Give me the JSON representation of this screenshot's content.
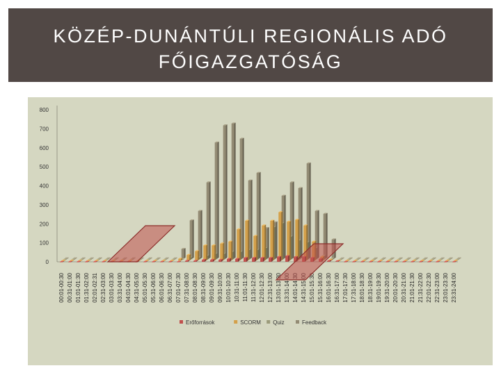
{
  "slide": {
    "title": "KÖZÉP-DUNÁNTÚLI REGIONÁLIS ADÓ\nFŐIGAZGATÓSÁG"
  },
  "colors": {
    "header_bg": "#514845",
    "panel_bg": "#d5d7c1",
    "highlight": "#c0504d"
  },
  "chart_data": {
    "type": "bar",
    "title": "",
    "xlabel": "",
    "ylabel": "",
    "ylim": [
      0,
      800
    ],
    "yticks": [
      "0",
      "100",
      "200",
      "300",
      "400",
      "500",
      "600",
      "700",
      "800"
    ],
    "grid": false,
    "legend_position": "bottom",
    "categories": [
      "00:01-00:30",
      "00:31-01:00",
      "01:01-01:30",
      "01:31-02:00",
      "02:01-02:31",
      "02:31-03:00",
      "03:01-03:30",
      "03:31-04:00",
      "04:01-04:30",
      "04:31-05:00",
      "05:01-05:30",
      "05:31-06:00",
      "06:01-06:30",
      "06:31-07:00",
      "07:01-07:30",
      "07:31-08:00",
      "08:01-08:30",
      "08:31-09:00",
      "09:01-09:30",
      "09:31-10:00",
      "10:01-10:30",
      "10:31-11:00",
      "11:01-11:30",
      "11:31-12:00",
      "12:01-12:30",
      "12:31-13:00",
      "13:01-13:30",
      "13:31-14:00",
      "14:01-14:30",
      "14:31-15:00",
      "15:01-15:30",
      "15:31-16:00",
      "16:01-16:30",
      "16:31-17:00",
      "17:01-17:30",
      "17:31-18:00",
      "18:01-18:30",
      "18:31-19:00",
      "19:01-19:30",
      "19:31-20:00",
      "20:01-20:30",
      "20:31-21:00",
      "21:01-21:30",
      "21:31-22:00",
      "22:01-22:30",
      "22:31-23:00",
      "23:01-23:30",
      "23:31-24:00"
    ],
    "series": [
      {
        "name": "Erőforrások",
        "color": "#c0504d",
        "values": [
          0,
          0,
          0,
          0,
          0,
          0,
          0,
          0,
          0,
          0,
          0,
          0,
          0,
          0,
          0,
          5,
          5,
          10,
          10,
          10,
          15,
          15,
          20,
          20,
          20,
          20,
          25,
          30,
          25,
          25,
          20,
          15,
          5,
          3,
          0,
          0,
          0,
          0,
          0,
          0,
          0,
          0,
          0,
          0,
          0,
          0,
          0,
          0
        ]
      },
      {
        "name": "SCORM",
        "color": "#d4a04a",
        "values": [
          0,
          0,
          0,
          0,
          0,
          0,
          0,
          0,
          0,
          0,
          0,
          0,
          0,
          0,
          10,
          30,
          50,
          80,
          80,
          90,
          100,
          165,
          210,
          130,
          185,
          210,
          255,
          205,
          215,
          185,
          100,
          20,
          5,
          0,
          0,
          0,
          0,
          0,
          0,
          0,
          0,
          0,
          0,
          0,
          0,
          0,
          0,
          0
        ]
      },
      {
        "name": "Quiz",
        "color": "#9b9b7a",
        "values": [
          0,
          0,
          0,
          0,
          0,
          0,
          0,
          0,
          0,
          0,
          0,
          0,
          0,
          0,
          0,
          10,
          10,
          20,
          30,
          30,
          40,
          40,
          50,
          50,
          60,
          170,
          190,
          120,
          100,
          90,
          60,
          20,
          5,
          0,
          0,
          0,
          0,
          0,
          0,
          0,
          0,
          0,
          0,
          0,
          0,
          0,
          0,
          0
        ]
      },
      {
        "name": "Feedback",
        "color": "#938b74",
        "values": [
          0,
          0,
          0,
          0,
          0,
          0,
          0,
          0,
          0,
          0,
          0,
          0,
          0,
          0,
          50,
          200,
          250,
          400,
          610,
          700,
          710,
          630,
          410,
          450,
          160,
          190,
          330,
          400,
          370,
          500,
          250,
          235,
          100,
          0,
          0,
          0,
          0,
          0,
          0,
          0,
          0,
          0,
          0,
          0,
          0,
          0,
          0,
          0
        ]
      }
    ]
  }
}
